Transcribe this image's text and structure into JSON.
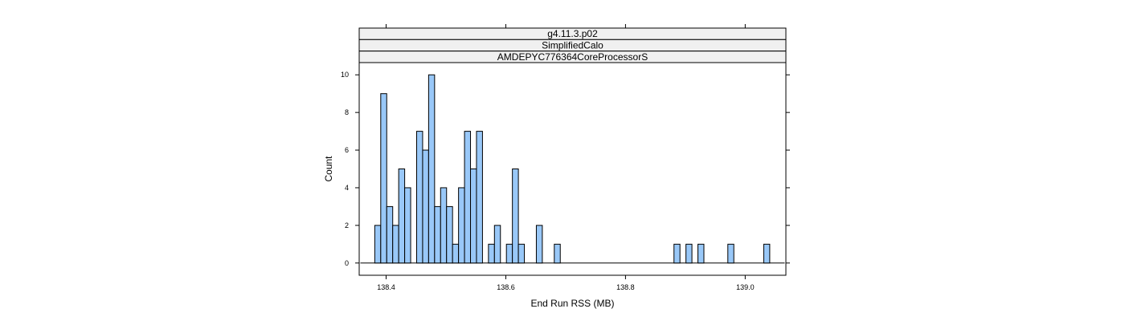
{
  "strips": [
    "g4.11.3.p02",
    "SimplifiedCalo",
    "AMDEPYC776364CoreProcessorS"
  ],
  "chart_data": {
    "type": "bar",
    "title": "",
    "xlabel": "End Run RSS (MB)",
    "ylabel": "Count",
    "xlim": [
      138.355,
      139.068
    ],
    "ylim": [
      -0.65,
      10.65
    ],
    "x_ticks": [
      138.4,
      138.6,
      138.8,
      139.0
    ],
    "x_tick_labels": [
      "138.4",
      "138.6",
      "138.8",
      "139.0"
    ],
    "y_ticks": [
      0,
      2,
      4,
      6,
      8,
      10
    ],
    "y_tick_labels": [
      "0",
      "2",
      "4",
      "6",
      "8",
      "10"
    ],
    "baseline": [
      138.357,
      139.066
    ],
    "bin_width": 0.01,
    "bins": [
      {
        "x": 138.386,
        "count": 2
      },
      {
        "x": 138.396,
        "count": 9
      },
      {
        "x": 138.406,
        "count": 3
      },
      {
        "x": 138.416,
        "count": 2
      },
      {
        "x": 138.426,
        "count": 5
      },
      {
        "x": 138.436,
        "count": 4
      },
      {
        "x": 138.446,
        "count": 0
      },
      {
        "x": 138.456,
        "count": 7
      },
      {
        "x": 138.466,
        "count": 6
      },
      {
        "x": 138.476,
        "count": 10
      },
      {
        "x": 138.486,
        "count": 3
      },
      {
        "x": 138.496,
        "count": 4
      },
      {
        "x": 138.506,
        "count": 3
      },
      {
        "x": 138.516,
        "count": 1
      },
      {
        "x": 138.526,
        "count": 4
      },
      {
        "x": 138.536,
        "count": 7
      },
      {
        "x": 138.546,
        "count": 5
      },
      {
        "x": 138.556,
        "count": 7
      },
      {
        "x": 138.566,
        "count": 0
      },
      {
        "x": 138.576,
        "count": 1
      },
      {
        "x": 138.586,
        "count": 2
      },
      {
        "x": 138.596,
        "count": 0
      },
      {
        "x": 138.606,
        "count": 1
      },
      {
        "x": 138.616,
        "count": 5
      },
      {
        "x": 138.626,
        "count": 1
      },
      {
        "x": 138.656,
        "count": 2
      },
      {
        "x": 138.686,
        "count": 1
      },
      {
        "x": 138.886,
        "count": 1
      },
      {
        "x": 138.906,
        "count": 1
      },
      {
        "x": 138.926,
        "count": 1
      },
      {
        "x": 138.976,
        "count": 1
      },
      {
        "x": 139.036,
        "count": 1
      }
    ],
    "bar_fill": "#99c8f8",
    "bar_stroke": "#000000",
    "strip_fill": "#f0f0f0",
    "grid": false
  }
}
